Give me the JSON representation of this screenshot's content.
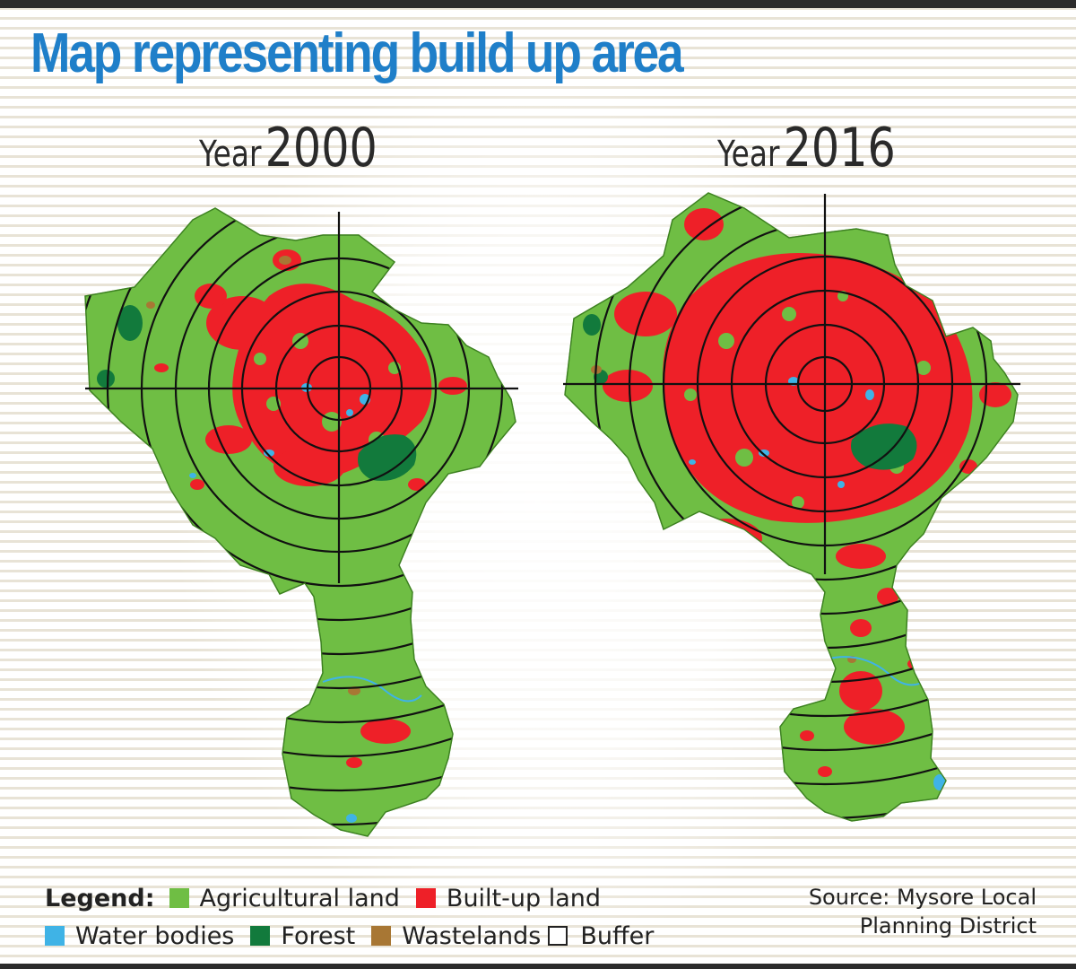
{
  "title": "Map representing build up area",
  "maps": [
    {
      "year_word": "Year",
      "year_value": "2000"
    },
    {
      "year_word": "Year",
      "year_value": "2016"
    }
  ],
  "legend": {
    "label": "Legend:",
    "items": [
      {
        "label": "Agricultural land",
        "color": "#6fbe44"
      },
      {
        "label": "Built-up land",
        "color": "#ee2028"
      },
      {
        "label": "Water bodies",
        "color": "#3fb3e6"
      },
      {
        "label": "Forest",
        "color": "#127a3c"
      },
      {
        "label": "Wastelands",
        "color": "#a87734"
      },
      {
        "label": "Buffer",
        "color": "#ffffff"
      }
    ]
  },
  "source": {
    "line1": "Source: Mysore Local",
    "line2": "Planning District"
  },
  "colors": {
    "title": "#1f7fc9",
    "agricultural": "#6fbe44",
    "builtup": "#ee2028",
    "water": "#3fb3e6",
    "forest": "#127a3c",
    "wasteland": "#a87734"
  }
}
